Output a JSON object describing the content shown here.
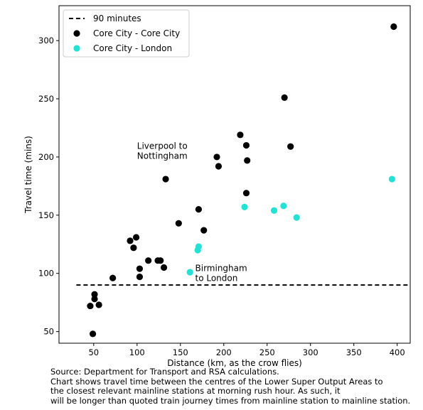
{
  "chart_data": {
    "type": "scatter",
    "xlabel": "Distance (km, as the crow flies)",
    "ylabel": "Travel time (mins)",
    "xlim": [
      10,
      415
    ],
    "ylim": [
      40,
      330
    ],
    "xticks": [
      50,
      100,
      150,
      200,
      250,
      300,
      350,
      400
    ],
    "yticks": [
      50,
      100,
      150,
      200,
      250,
      300
    ],
    "grid": false,
    "legend_position": "top-left",
    "reference_line": {
      "name": "90 minutes",
      "y": 90,
      "x_range": [
        30,
        412
      ],
      "style": "dashed",
      "color": "#000000"
    },
    "series": [
      {
        "name": "Core City - Core City",
        "color": "#000000",
        "points": [
          [
            49,
            48
          ],
          [
            46,
            72
          ],
          [
            51,
            78
          ],
          [
            51,
            82
          ],
          [
            56,
            73
          ],
          [
            72,
            96
          ],
          [
            92,
            128
          ],
          [
            96,
            122
          ],
          [
            99,
            131
          ],
          [
            103,
            97
          ],
          [
            103,
            104
          ],
          [
            113,
            111
          ],
          [
            124,
            111
          ],
          [
            127,
            111
          ],
          [
            131,
            105
          ],
          [
            133,
            181
          ],
          [
            148,
            143
          ],
          [
            171,
            155
          ],
          [
            177,
            137
          ],
          [
            192,
            200
          ],
          [
            194,
            192
          ],
          [
            219,
            219
          ],
          [
            226,
            169
          ],
          [
            226,
            210
          ],
          [
            227,
            197
          ],
          [
            270,
            251
          ],
          [
            277,
            209
          ],
          [
            396,
            312
          ]
        ]
      },
      {
        "name": "Core City - London",
        "color": "#1de4d4",
        "points": [
          [
            161,
            101
          ],
          [
            170,
            120
          ],
          [
            171,
            123
          ],
          [
            224,
            157
          ],
          [
            258,
            154
          ],
          [
            269,
            158
          ],
          [
            284,
            148
          ],
          [
            394,
            181
          ]
        ]
      }
    ],
    "annotations": [
      {
        "lines": [
          "Liverpool to",
          "Nottingham"
        ],
        "x": 100,
        "y": 207
      },
      {
        "lines": [
          "Birmingham",
          "to London"
        ],
        "x": 167,
        "y": 102
      }
    ]
  },
  "note": {
    "lines": [
      "Source: Department for Transport and RSA calculations.",
      "Chart shows travel time between the centres of the Lower Super Output Areas to",
      "the closest relevant mainline stations at morning rush hour. As such, it",
      "will be longer than quoted train journey times from mainline station to mainline  station."
    ]
  }
}
